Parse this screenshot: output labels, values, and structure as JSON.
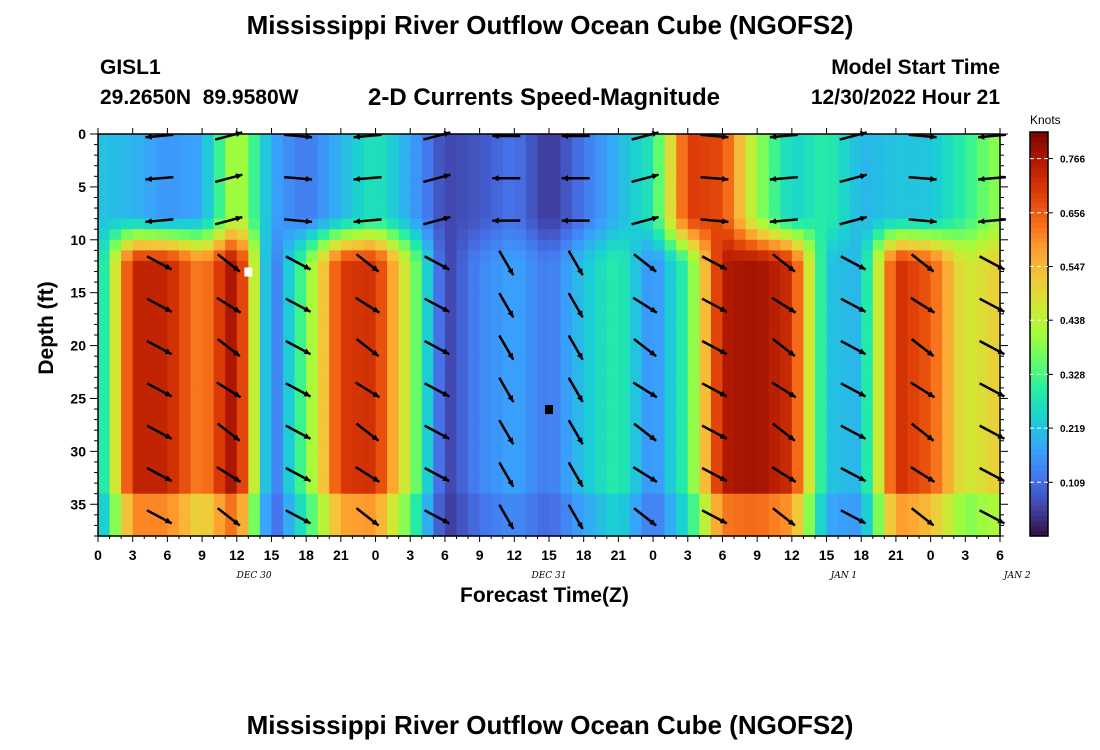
{
  "header": {
    "title": "Mississippi River Outflow Ocean Cube (NGOFS2)",
    "station_id": "GISL1",
    "station_coords": "29.2650N  89.9580W",
    "subtitle": "2-D Currents Speed-Magnitude",
    "model_start_label": "Model Start Time",
    "model_start_value": "12/30/2022 Hour 21"
  },
  "footer": {
    "title": "Mississippi River Outflow Ocean Cube (NGOFS2)"
  },
  "chart_data": {
    "type": "heatmap",
    "title": "2-D Currents Speed-Magnitude",
    "xlabel": "Forecast Time(Z)",
    "ylabel": "Depth (ft)",
    "x_ticks": [
      "0",
      "3",
      "6",
      "9",
      "12",
      "15",
      "18",
      "21",
      "0",
      "3",
      "6",
      "9",
      "12",
      "15",
      "18",
      "21",
      "0",
      "3",
      "6",
      "9",
      "12",
      "15",
      "18",
      "21",
      "0",
      "3",
      "6"
    ],
    "day_labels": [
      {
        "label": "DEC 30",
        "tick_index": 4.5
      },
      {
        "label": "DEC 31",
        "tick_index": 13
      },
      {
        "label": "JAN 1",
        "tick_index": 21.5
      },
      {
        "label": "JAN 2",
        "tick_index": 26.5
      }
    ],
    "y_ticks": [
      0,
      5,
      10,
      15,
      20,
      25,
      30,
      35
    ],
    "ylim": [
      0,
      38
    ],
    "y_inverted": true,
    "x_hours_range": [
      0,
      78
    ],
    "colorbar": {
      "unit": "Knots",
      "min": 0.0,
      "max": 0.82,
      "ticks": [
        0.766,
        0.656,
        0.547,
        0.438,
        0.328,
        0.219,
        0.109
      ],
      "colors": [
        "#30123b",
        "#4145ab",
        "#4675ed",
        "#39a2fc",
        "#1bcfd4",
        "#24eca6",
        "#61fc6c",
        "#a4fc3b",
        "#d1e834",
        "#f3c63a",
        "#fe9b2d",
        "#f36315",
        "#d93806",
        "#b11901",
        "#7a0402"
      ]
    },
    "speed_profile_hours": [
      0,
      3,
      6,
      9,
      12,
      15,
      18,
      21,
      24,
      27,
      30,
      33,
      36,
      39,
      42,
      45,
      48,
      51,
      54,
      57,
      60,
      63,
      66,
      69,
      72,
      75,
      78
    ],
    "surface_speed": [
      0.22,
      0.2,
      0.16,
      0.18,
      0.45,
      0.18,
      0.12,
      0.2,
      0.28,
      0.18,
      0.06,
      0.08,
      0.12,
      0.04,
      0.12,
      0.2,
      0.28,
      0.7,
      0.68,
      0.4,
      0.24,
      0.3,
      0.2,
      0.22,
      0.22,
      0.3,
      0.4
    ],
    "deep_speed": [
      0.2,
      0.74,
      0.74,
      0.6,
      0.8,
      0.1,
      0.36,
      0.7,
      0.72,
      0.42,
      0.05,
      0.14,
      0.18,
      0.12,
      0.22,
      0.3,
      0.14,
      0.32,
      0.76,
      0.78,
      0.72,
      0.22,
      0.2,
      0.72,
      0.66,
      0.46,
      0.52
    ],
    "markers": [
      {
        "hour": 13,
        "depth": 13,
        "color": "#ffffff"
      },
      {
        "hour": 39,
        "depth": 26,
        "color": "#000000"
      }
    ],
    "arrow_hours": [
      6,
      12,
      18,
      24,
      30,
      36,
      42,
      48,
      54,
      60,
      66,
      72,
      78
    ],
    "arrow_depths": [
      0,
      4,
      8,
      12,
      16,
      20,
      24,
      28,
      32,
      36
    ]
  }
}
